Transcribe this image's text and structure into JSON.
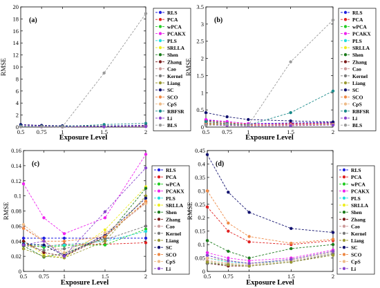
{
  "chart_data": [
    {
      "panel": "(a)",
      "type": "line",
      "ylabel": "RMSE",
      "xlabel": "Exposure Level",
      "x": [
        0.5,
        0.75,
        1,
        1.5,
        2
      ],
      "xticks": [
        "0.5",
        "0.75",
        "1",
        "1.5",
        "2"
      ],
      "ylim": [
        0,
        20
      ],
      "yticks": [
        0,
        2,
        4,
        6,
        8,
        10,
        12,
        14,
        16,
        18,
        20
      ],
      "series": [
        {
          "name": "RLS",
          "color": "#1f1fe0",
          "values": [
            0.22,
            0.2,
            0.12,
            0.18,
            0.3
          ]
        },
        {
          "name": "PCA",
          "color": "#e01f1f",
          "values": [
            0.2,
            0.15,
            0.08,
            0.12,
            0.22
          ]
        },
        {
          "name": "wPCA",
          "color": "#22cc22",
          "values": [
            0.1,
            0.08,
            0.05,
            0.08,
            0.12
          ]
        },
        {
          "name": "PCAKX",
          "color": "#ee22ee",
          "values": [
            0.24,
            0.18,
            0.12,
            0.1,
            0.18
          ]
        },
        {
          "name": "PLS",
          "color": "#22dddd",
          "values": [
            0.08,
            0.06,
            0.04,
            0.06,
            0.1
          ]
        },
        {
          "name": "SRLLA",
          "color": "#eeee22",
          "values": [
            0.1,
            0.08,
            0.05,
            0.07,
            0.12
          ]
        },
        {
          "name": "Shen",
          "color": "#1a7a1a",
          "values": [
            0.12,
            0.1,
            0.06,
            0.08,
            0.14
          ]
        },
        {
          "name": "Zhang",
          "color": "#7a1a1a",
          "values": [
            0.09,
            0.07,
            0.05,
            0.07,
            0.11
          ]
        },
        {
          "name": "Cao",
          "color": "#cc9999",
          "values": [
            0.13,
            0.1,
            0.06,
            0.08,
            0.12
          ]
        },
        {
          "name": "Kernel",
          "color": "#777777",
          "values": [
            0.1,
            0.08,
            0.05,
            0.07,
            0.1
          ]
        },
        {
          "name": "Liang",
          "color": "#999933",
          "values": [
            0.08,
            0.06,
            0.04,
            0.06,
            0.09
          ]
        },
        {
          "name": "SC",
          "color": "#10106e",
          "values": [
            0.42,
            0.28,
            0.22,
            0.18,
            0.15
          ]
        },
        {
          "name": "SCO",
          "color": "#ee8844",
          "values": [
            0.1,
            0.08,
            0.05,
            0.07,
            0.1
          ]
        },
        {
          "name": "CpS",
          "color": "#eebb88",
          "values": [
            0.07,
            0.05,
            0.04,
            0.06,
            0.09
          ]
        },
        {
          "name": "RBFSR",
          "color": "#1a8a8a",
          "values": [
            0.18,
            0.12,
            0.1,
            0.42,
            0.62
          ]
        },
        {
          "name": "Li",
          "color": "#8844cc",
          "values": [
            0.06,
            0.05,
            0.03,
            0.05,
            0.08
          ]
        },
        {
          "name": "BLS",
          "color": "#999999",
          "values": [
            0.05,
            0.08,
            0.05,
            9.0,
            18.9
          ]
        }
      ]
    },
    {
      "panel": "(b)",
      "type": "line",
      "ylabel": "RMSE",
      "xlabel": "Exposure Level",
      "x": [
        0.5,
        0.75,
        1,
        1.5,
        2
      ],
      "xticks": [
        "0.5",
        "0.75",
        "1",
        "1.5",
        "2"
      ],
      "ylim": [
        0,
        3.5
      ],
      "yticks": [
        0,
        0.5,
        1,
        1.5,
        2,
        2.5,
        3,
        3.5
      ],
      "yticklabels": [
        "0",
        "0.5",
        "1",
        "1.5",
        "2",
        "2.5",
        "3",
        "3.5"
      ],
      "series": [
        {
          "name": "RLS",
          "color": "#1f1fe0",
          "values": [
            0.2,
            0.16,
            0.1,
            0.12,
            0.14
          ]
        },
        {
          "name": "PCA",
          "color": "#e01f1f",
          "values": [
            0.18,
            0.13,
            0.08,
            0.1,
            0.12
          ]
        },
        {
          "name": "wPCA",
          "color": "#22cc22",
          "values": [
            0.1,
            0.08,
            0.05,
            0.06,
            0.08
          ]
        },
        {
          "name": "PCAKX",
          "color": "#ee22ee",
          "values": [
            0.22,
            0.16,
            0.1,
            0.08,
            0.12
          ]
        },
        {
          "name": "PLS",
          "color": "#22dddd",
          "values": [
            0.08,
            0.06,
            0.04,
            0.05,
            0.07
          ]
        },
        {
          "name": "SRLLA",
          "color": "#eeee22",
          "values": [
            0.1,
            0.08,
            0.05,
            0.06,
            0.08
          ]
        },
        {
          "name": "Shen",
          "color": "#1a7a1a",
          "values": [
            0.12,
            0.1,
            0.06,
            0.07,
            0.1
          ]
        },
        {
          "name": "Zhang",
          "color": "#7a1a1a",
          "values": [
            0.09,
            0.07,
            0.05,
            0.06,
            0.08
          ]
        },
        {
          "name": "Cao",
          "color": "#cc9999",
          "values": [
            0.13,
            0.1,
            0.06,
            0.07,
            0.09
          ]
        },
        {
          "name": "Kernel",
          "color": "#777777",
          "values": [
            0.1,
            0.08,
            0.05,
            0.06,
            0.08
          ]
        },
        {
          "name": "Liang",
          "color": "#999933",
          "values": [
            0.08,
            0.06,
            0.04,
            0.05,
            0.07
          ]
        },
        {
          "name": "SC",
          "color": "#10106e",
          "values": [
            0.42,
            0.3,
            0.22,
            0.18,
            0.15
          ]
        },
        {
          "name": "SCO",
          "color": "#ee8844",
          "values": [
            0.1,
            0.08,
            0.05,
            0.06,
            0.08
          ]
        },
        {
          "name": "CpS",
          "color": "#eebb88",
          "values": [
            0.07,
            0.05,
            0.04,
            0.05,
            0.07
          ]
        },
        {
          "name": "RBFSR",
          "color": "#1a8a8a",
          "values": [
            0.16,
            0.1,
            0.06,
            0.42,
            1.05
          ]
        },
        {
          "name": "Li",
          "color": "#8844cc",
          "values": [
            0.06,
            0.05,
            0.03,
            0.04,
            0.06
          ]
        },
        {
          "name": "BLS",
          "color": "#999999",
          "values": [
            0.05,
            0.08,
            0.05,
            1.9,
            3.12
          ]
        }
      ]
    },
    {
      "panel": "(c)",
      "type": "line",
      "ylabel": "RMSE",
      "xlabel": "Exposure Level",
      "x": [
        0.5,
        0.75,
        1,
        1.5,
        2
      ],
      "xticks": [
        "0.5",
        "0.75",
        "1",
        "1.5",
        "2"
      ],
      "ylim": [
        0,
        0.16
      ],
      "yticks": [
        0,
        0.02,
        0.04,
        0.06,
        0.08,
        0.1,
        0.12,
        0.14,
        0.16
      ],
      "yticklabels": [
        "0",
        "0.02",
        "0.04",
        "0.06",
        "0.08",
        "0.1",
        "0.12",
        "0.14",
        "0.16"
      ],
      "series": [
        {
          "name": "RLS",
          "color": "#1f1fe0",
          "values": [
            0.044,
            0.044,
            0.044,
            0.044,
            0.044
          ]
        },
        {
          "name": "PCA",
          "color": "#e01f1f",
          "values": [
            0.034,
            0.033,
            0.036,
            0.036,
            0.038
          ]
        },
        {
          "name": "wPCA",
          "color": "#22cc22",
          "values": [
            0.036,
            0.032,
            0.034,
            0.035,
            0.056
          ]
        },
        {
          "name": "PCAKX",
          "color": "#ee22ee",
          "values": [
            0.116,
            0.071,
            0.05,
            0.071,
            0.155
          ]
        },
        {
          "name": "PLS",
          "color": "#22dddd",
          "values": [
            0.038,
            0.034,
            0.035,
            0.04,
            0.053
          ]
        },
        {
          "name": "SRLLA",
          "color": "#eeee22",
          "values": [
            0.04,
            0.022,
            0.018,
            0.055,
            0.112
          ]
        },
        {
          "name": "Shen",
          "color": "#1a7a1a",
          "values": [
            0.034,
            0.019,
            0.024,
            0.044,
            0.11
          ]
        },
        {
          "name": "Zhang",
          "color": "#7a1a1a",
          "values": [
            0.04,
            0.025,
            0.02,
            0.046,
            0.092
          ]
        },
        {
          "name": "Cao",
          "color": "#cc9999",
          "values": [
            0.058,
            0.04,
            0.022,
            0.048,
            0.09
          ]
        },
        {
          "name": "Kernel",
          "color": "#777777",
          "values": [
            0.035,
            0.028,
            0.03,
            0.042,
            0.06
          ]
        },
        {
          "name": "Liang",
          "color": "#999933",
          "values": [
            0.03,
            0.02,
            0.018,
            0.04,
            0.1
          ]
        },
        {
          "name": "SC",
          "color": "#10106e",
          "values": [
            0.036,
            0.035,
            0.021,
            0.048,
            0.097
          ]
        },
        {
          "name": "SCO",
          "color": "#ee8844",
          "values": [
            0.057,
            0.04,
            0.04,
            0.046,
            0.093
          ]
        },
        {
          "name": "CpS",
          "color": "#eebb88",
          "values": [
            0.062,
            0.04,
            0.025,
            0.051,
            0.09
          ]
        },
        {
          "name": "Li",
          "color": "#8844cc",
          "values": [
            0.035,
            0.04,
            0.02,
            0.079,
            0.137
          ]
        }
      ]
    },
    {
      "panel": "(d)",
      "type": "line",
      "ylabel": "RMSE",
      "xlabel": "Exposure Level",
      "x": [
        0.5,
        0.75,
        1,
        1.5,
        2
      ],
      "xticks": [
        "0.5",
        "0.75",
        "1",
        "1.5",
        "2"
      ],
      "ylim": [
        0,
        0.45
      ],
      "yticks": [
        0,
        0.05,
        0.1,
        0.15,
        0.2,
        0.25,
        0.3,
        0.35,
        0.4,
        0.45
      ],
      "yticklabels": [
        "0",
        "0.05",
        "0.1",
        "0.15",
        "0.2",
        "0.25",
        "0.3",
        "0.35",
        "0.4",
        "0.45"
      ],
      "series": [
        {
          "name": "RLS",
          "color": "#1f1fe0",
          "values": [
            0.06,
            0.04,
            0.03,
            0.045,
            0.075
          ]
        },
        {
          "name": "PCA",
          "color": "#e01f1f",
          "values": [
            0.24,
            0.15,
            0.11,
            0.1,
            0.115
          ]
        },
        {
          "name": "wPCA",
          "color": "#22cc22",
          "values": [
            0.03,
            0.025,
            0.02,
            0.035,
            0.065
          ]
        },
        {
          "name": "PCAKX",
          "color": "#ee22ee",
          "values": [
            0.07,
            0.05,
            0.04,
            0.05,
            0.08
          ]
        },
        {
          "name": "PLS",
          "color": "#22dddd",
          "values": [
            0.05,
            0.035,
            0.03,
            0.04,
            0.07
          ]
        },
        {
          "name": "SRLLA",
          "color": "#eeee22",
          "values": [
            0.04,
            0.03,
            0.025,
            0.04,
            0.07
          ]
        },
        {
          "name": "Shen",
          "color": "#1a7a1a",
          "values": [
            0.115,
            0.075,
            0.05,
            0.085,
            0.1
          ]
        },
        {
          "name": "Zhang",
          "color": "#7a1a1a",
          "values": [
            0.03,
            0.02,
            0.02,
            0.035,
            0.065
          ]
        },
        {
          "name": "Cao",
          "color": "#cc9999",
          "values": [
            0.04,
            0.03,
            0.025,
            0.04,
            0.07
          ]
        },
        {
          "name": "Kernel",
          "color": "#777777",
          "values": [
            0.03,
            0.025,
            0.02,
            0.035,
            0.065
          ]
        },
        {
          "name": "Liang",
          "color": "#999933",
          "values": [
            0.035,
            0.025,
            0.02,
            0.035,
            0.06
          ]
        },
        {
          "name": "SC",
          "color": "#10106e",
          "values": [
            0.435,
            0.295,
            0.22,
            0.16,
            0.145
          ]
        },
        {
          "name": "SCO",
          "color": "#ee8844",
          "values": [
            0.3,
            0.18,
            0.13,
            0.105,
            0.12
          ]
        },
        {
          "name": "CpS",
          "color": "#eebb88",
          "values": [
            0.05,
            0.04,
            0.03,
            0.045,
            0.075
          ]
        },
        {
          "name": "Li",
          "color": "#8844cc",
          "values": [
            0.06,
            0.04,
            0.03,
            0.045,
            0.075
          ]
        }
      ]
    }
  ]
}
